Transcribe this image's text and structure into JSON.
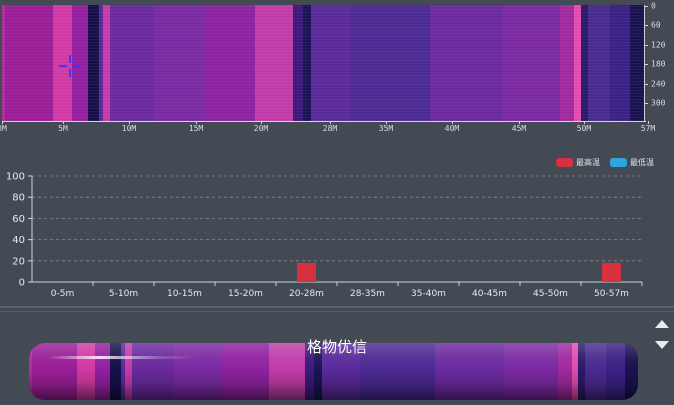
{
  "heatmap": {
    "x_ticks": [
      "0M",
      "5M",
      "10M",
      "15M",
      "20M",
      "28M",
      "35M",
      "40M",
      "45M",
      "50M",
      "57M"
    ],
    "y_ticks": [
      "0",
      "60",
      "120",
      "180",
      "240",
      "300"
    ],
    "bands": [
      {
        "from": 0.0,
        "to": 0.3,
        "color": "#b02c9c"
      },
      {
        "from": 0.3,
        "to": 4.5,
        "color": "#9a1e96"
      },
      {
        "from": 4.5,
        "to": 6.2,
        "color": "#d13aa4"
      },
      {
        "from": 6.2,
        "to": 7.6,
        "color": "#9320a0"
      },
      {
        "from": 7.6,
        "to": 8.6,
        "color": "#16104a"
      },
      {
        "from": 8.6,
        "to": 9.0,
        "color": "#5a2a9a"
      },
      {
        "from": 9.0,
        "to": 9.6,
        "color": "#c73aa7"
      },
      {
        "from": 9.6,
        "to": 13.5,
        "color": "#6a2a9e"
      },
      {
        "from": 13.5,
        "to": 18.0,
        "color": "#7a2aa2"
      },
      {
        "from": 18.0,
        "to": 22.5,
        "color": "#8f22a0"
      },
      {
        "from": 22.5,
        "to": 25.8,
        "color": "#c03ca8"
      },
      {
        "from": 25.8,
        "to": 26.7,
        "color": "#3b1a7a"
      },
      {
        "from": 26.7,
        "to": 27.4,
        "color": "#1b1456"
      },
      {
        "from": 27.4,
        "to": 31.0,
        "color": "#5a2a9a"
      },
      {
        "from": 31.0,
        "to": 38.0,
        "color": "#4c2a93"
      },
      {
        "from": 38.0,
        "to": 44.5,
        "color": "#6b2aa0"
      },
      {
        "from": 44.5,
        "to": 49.5,
        "color": "#7b2aa2"
      },
      {
        "from": 49.5,
        "to": 50.8,
        "color": "#a02a9e"
      },
      {
        "from": 50.8,
        "to": 51.4,
        "color": "#e24cb0"
      },
      {
        "from": 51.4,
        "to": 52.0,
        "color": "#2a1a6a"
      },
      {
        "from": 52.0,
        "to": 54.0,
        "color": "#4a2a90"
      },
      {
        "from": 54.0,
        "to": 55.8,
        "color": "#3a2284"
      },
      {
        "from": 55.8,
        "to": 57.0,
        "color": "#1a1250"
      }
    ]
  },
  "legend": {
    "max_label": "最高温",
    "min_label": "最低温",
    "max_color": "#d83040",
    "min_color": "#2aa6e0"
  },
  "chart_data": {
    "type": "bar",
    "categories": [
      "0-5m",
      "5-10m",
      "10-15m",
      "15-20m",
      "20-28m",
      "28-35m",
      "35-40m",
      "40-45m",
      "45-50m",
      "50-57m"
    ],
    "series": [
      {
        "name": "最高温",
        "values": [
          0,
          0,
          0,
          0,
          18,
          0,
          0,
          0,
          0,
          18
        ]
      },
      {
        "name": "最低温",
        "values": [
          0,
          0,
          0,
          0,
          0,
          0,
          0,
          0,
          0,
          0
        ]
      }
    ],
    "ylim": [
      0,
      100
    ],
    "yticks": [
      0,
      20,
      40,
      60,
      80,
      100
    ],
    "grid": true,
    "legend_position": "top-right"
  },
  "pipe": {
    "caption": "格物优信"
  },
  "nav": {
    "up_icon": "triangle-up-icon",
    "down_icon": "triangle-down-icon"
  }
}
